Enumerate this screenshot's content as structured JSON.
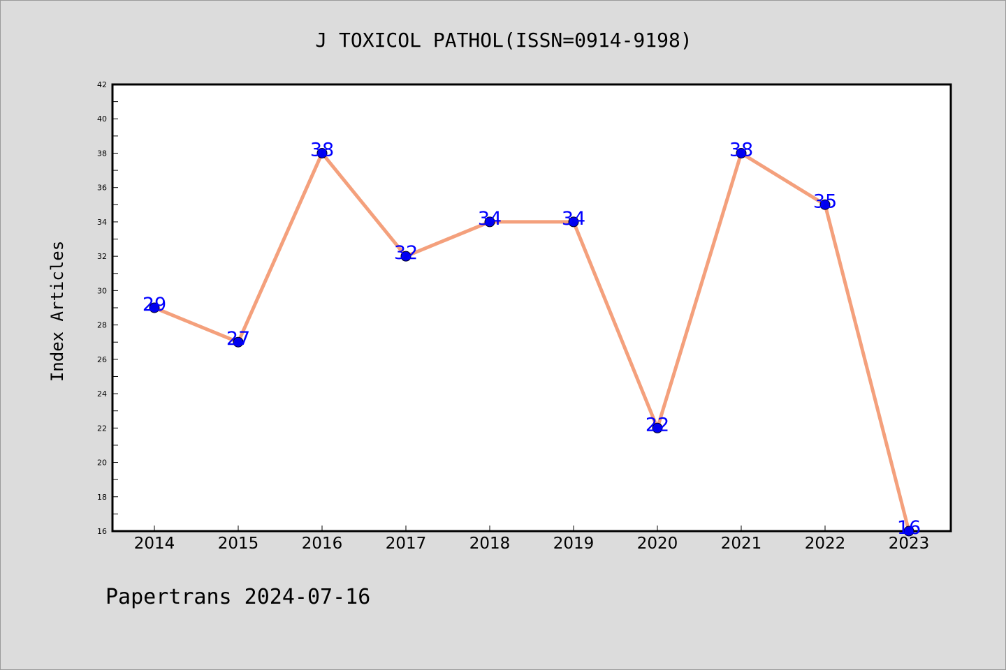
{
  "chart_data": {
    "type": "line",
    "title": "J TOXICOL PATHOL(ISSN=0914-9198)",
    "ylabel": "Index Articles",
    "xlabel": "",
    "categories": [
      "2014",
      "2015",
      "2016",
      "2017",
      "2018",
      "2019",
      "2020",
      "2021",
      "2022",
      "2023"
    ],
    "values": [
      29,
      27,
      38,
      32,
      34,
      34,
      22,
      38,
      35,
      16
    ],
    "data_labels": [
      "29",
      "27",
      "38",
      "32",
      "34",
      "34",
      "22",
      "38",
      "35",
      "16"
    ],
    "ylim": [
      16,
      42
    ],
    "yticks": [
      "16",
      "18",
      "20",
      "22",
      "24",
      "26",
      "28",
      "30",
      "32",
      "34",
      "36",
      "38",
      "40",
      "42"
    ],
    "grid": false,
    "legend": "none",
    "footer": "Papertrans 2024-07-16",
    "colors": {
      "background": "#dcdcdc",
      "plot_background": "#ffffff",
      "line": "#f4a07c",
      "marker": "#0000ee",
      "data_label": "#0000ff",
      "text": "#000000"
    }
  }
}
